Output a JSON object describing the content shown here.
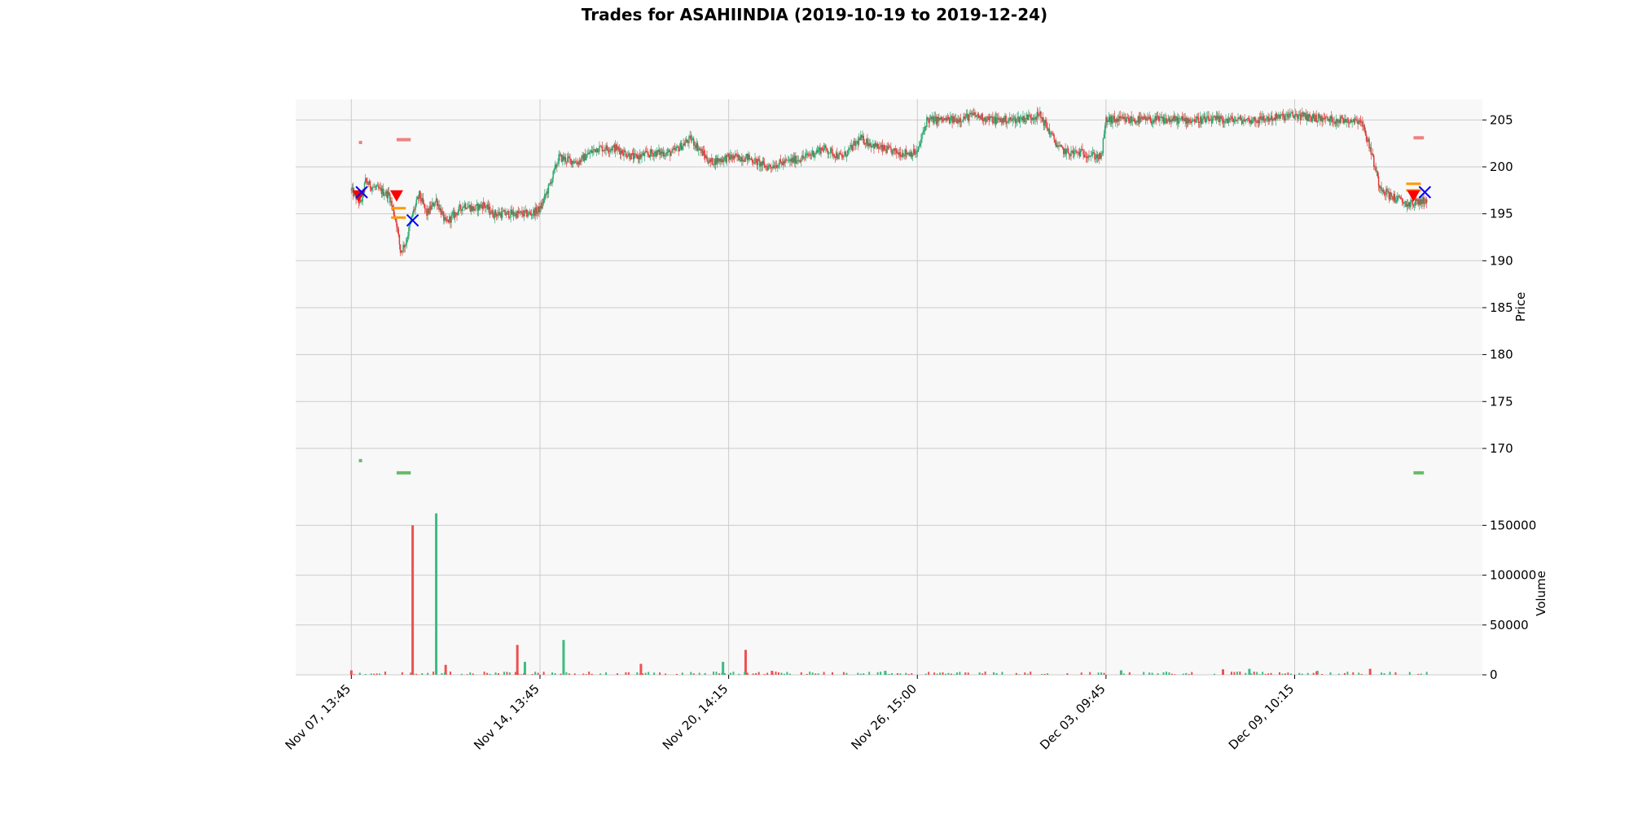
{
  "chart_data": {
    "type": "candlestick",
    "title": "Trades for ASAHIINDIA (2019-10-19 to 2019-12-24)",
    "colors": {
      "up": "#2ca870",
      "down": "#e23c3c",
      "up_volume": "#3dbb82",
      "down_volume": "#ee5050",
      "background": "#f8f8f8",
      "grid": "#cccccc",
      "entry_marker": "#ff0000",
      "exit_marker": "#0000ff",
      "level_marker": "#ff9900",
      "target_marker": "#f08080",
      "stop_marker": "#66bb66"
    },
    "x_ticks": [
      {
        "index": 0,
        "label": "Nov 07, 13:45"
      },
      {
        "index": 200,
        "label": "Nov 14, 13:45"
      },
      {
        "index": 400,
        "label": "Nov 20, 14:15"
      },
      {
        "index": 600,
        "label": "Nov 26, 15:00"
      },
      {
        "index": 800,
        "label": "Dec 03, 09:45"
      },
      {
        "index": 1000,
        "label": "Dec 09, 10:15"
      }
    ],
    "x_range": [
      -59,
      1199
    ],
    "price_panel": {
      "ylabel": "Price",
      "ylim": [
        163.4,
        207.2
      ],
      "ticks": [
        170,
        175,
        180,
        185,
        190,
        195,
        200,
        205
      ],
      "anchors": [
        [
          0,
          197.5
        ],
        [
          10,
          196
        ],
        [
          15,
          198.5
        ],
        [
          20,
          198
        ],
        [
          30,
          197.5
        ],
        [
          40,
          197
        ],
        [
          48,
          194
        ],
        [
          52,
          191
        ],
        [
          58,
          192
        ],
        [
          65,
          195
        ],
        [
          72,
          197
        ],
        [
          80,
          195
        ],
        [
          90,
          196.5
        ],
        [
          100,
          194
        ],
        [
          110,
          195
        ],
        [
          120,
          196
        ],
        [
          130,
          195.5
        ],
        [
          140,
          196
        ],
        [
          150,
          195
        ],
        [
          170,
          195
        ],
        [
          190,
          195
        ],
        [
          200,
          195.5
        ],
        [
          210,
          198
        ],
        [
          220,
          201
        ],
        [
          240,
          200.5
        ],
        [
          260,
          202
        ],
        [
          280,
          202
        ],
        [
          300,
          201
        ],
        [
          320,
          201.5
        ],
        [
          340,
          201.5
        ],
        [
          360,
          203
        ],
        [
          380,
          200.5
        ],
        [
          400,
          201
        ],
        [
          420,
          201
        ],
        [
          440,
          200
        ],
        [
          460,
          200.5
        ],
        [
          480,
          201
        ],
        [
          500,
          202
        ],
        [
          520,
          201
        ],
        [
          540,
          203
        ],
        [
          560,
          202
        ],
        [
          580,
          201.5
        ],
        [
          600,
          201.5
        ],
        [
          610,
          205
        ],
        [
          620,
          205
        ],
        [
          640,
          205
        ],
        [
          660,
          205.5
        ],
        [
          680,
          205
        ],
        [
          700,
          205
        ],
        [
          730,
          205.5
        ],
        [
          750,
          202
        ],
        [
          760,
          201.5
        ],
        [
          775,
          201.5
        ],
        [
          795,
          201
        ],
        [
          800,
          205
        ],
        [
          820,
          205
        ],
        [
          840,
          205
        ],
        [
          860,
          205
        ],
        [
          900,
          205
        ],
        [
          960,
          205
        ],
        [
          1000,
          205.5
        ],
        [
          1040,
          205
        ],
        [
          1070,
          205
        ],
        [
          1080,
          202
        ],
        [
          1090,
          198
        ],
        [
          1100,
          197
        ],
        [
          1120,
          196
        ],
        [
          1140,
          196.5
        ]
      ],
      "trade_markers": [
        {
          "kind": "entry",
          "shape": "triangle-down",
          "x": 8,
          "y": 196.9
        },
        {
          "kind": "exit",
          "shape": "x",
          "x": 11,
          "y": 197.3
        },
        {
          "kind": "entry",
          "shape": "triangle-down",
          "x": 48,
          "y": 196.9
        },
        {
          "kind": "level",
          "shape": "dash",
          "x": 50,
          "y": 195.6
        },
        {
          "kind": "level",
          "shape": "dash",
          "x": 50,
          "y": 194.6
        },
        {
          "kind": "exit",
          "shape": "x",
          "x": 65,
          "y": 194.3
        },
        {
          "kind": "level",
          "shape": "dash",
          "x": 1126,
          "y": 198.2
        },
        {
          "kind": "level",
          "shape": "dash",
          "x": 1126,
          "y": 197.5
        },
        {
          "kind": "entry",
          "shape": "triangle-down",
          "x": 1126,
          "y": 196.9
        },
        {
          "kind": "exit",
          "shape": "x",
          "x": 1138,
          "y": 197.3
        }
      ],
      "target_levels": [
        {
          "x0": 8,
          "x1": 11,
          "y": 202.6
        },
        {
          "x0": 48,
          "x1": 63,
          "y": 202.9
        },
        {
          "x0": 1126,
          "x1": 1137,
          "y": 203.1
        }
      ],
      "stop_levels": [
        {
          "x0": 8,
          "x1": 11,
          "y": 168.7
        },
        {
          "x0": 48,
          "x1": 63,
          "y": 167.4
        },
        {
          "x0": 1126,
          "x1": 1137,
          "y": 167.4
        }
      ]
    },
    "volume_panel": {
      "ylabel": "Volume",
      "ylim": [
        0,
        165000
      ],
      "ticks": [
        0,
        50000,
        100000,
        150000
      ],
      "bars": [
        {
          "x": 65,
          "v": 150000,
          "dir": "down"
        },
        {
          "x": 90,
          "v": 162000,
          "dir": "up"
        },
        {
          "x": 176,
          "v": 30000,
          "dir": "down"
        },
        {
          "x": 225,
          "v": 35000,
          "dir": "up"
        },
        {
          "x": 418,
          "v": 25000,
          "dir": "down"
        },
        {
          "x": 184,
          "v": 13000,
          "dir": "up"
        },
        {
          "x": 394,
          "v": 13000,
          "dir": "up"
        },
        {
          "x": 307,
          "v": 11000,
          "dir": "down"
        },
        {
          "x": 100,
          "v": 10000,
          "dir": "down"
        },
        {
          "x": 1080,
          "v": 6000,
          "dir": "down"
        },
        {
          "x": 924,
          "v": 5500,
          "dir": "down"
        },
        {
          "x": 952,
          "v": 6000,
          "dir": "up"
        },
        {
          "x": 0,
          "v": 4500,
          "dir": "down"
        },
        {
          "x": 816,
          "v": 4500,
          "dir": "up"
        },
        {
          "x": 1024,
          "v": 4000,
          "dir": "up"
        },
        {
          "x": 446,
          "v": 4000,
          "dir": "down"
        },
        {
          "x": 566,
          "v": 4000,
          "dir": "up"
        }
      ]
    }
  }
}
